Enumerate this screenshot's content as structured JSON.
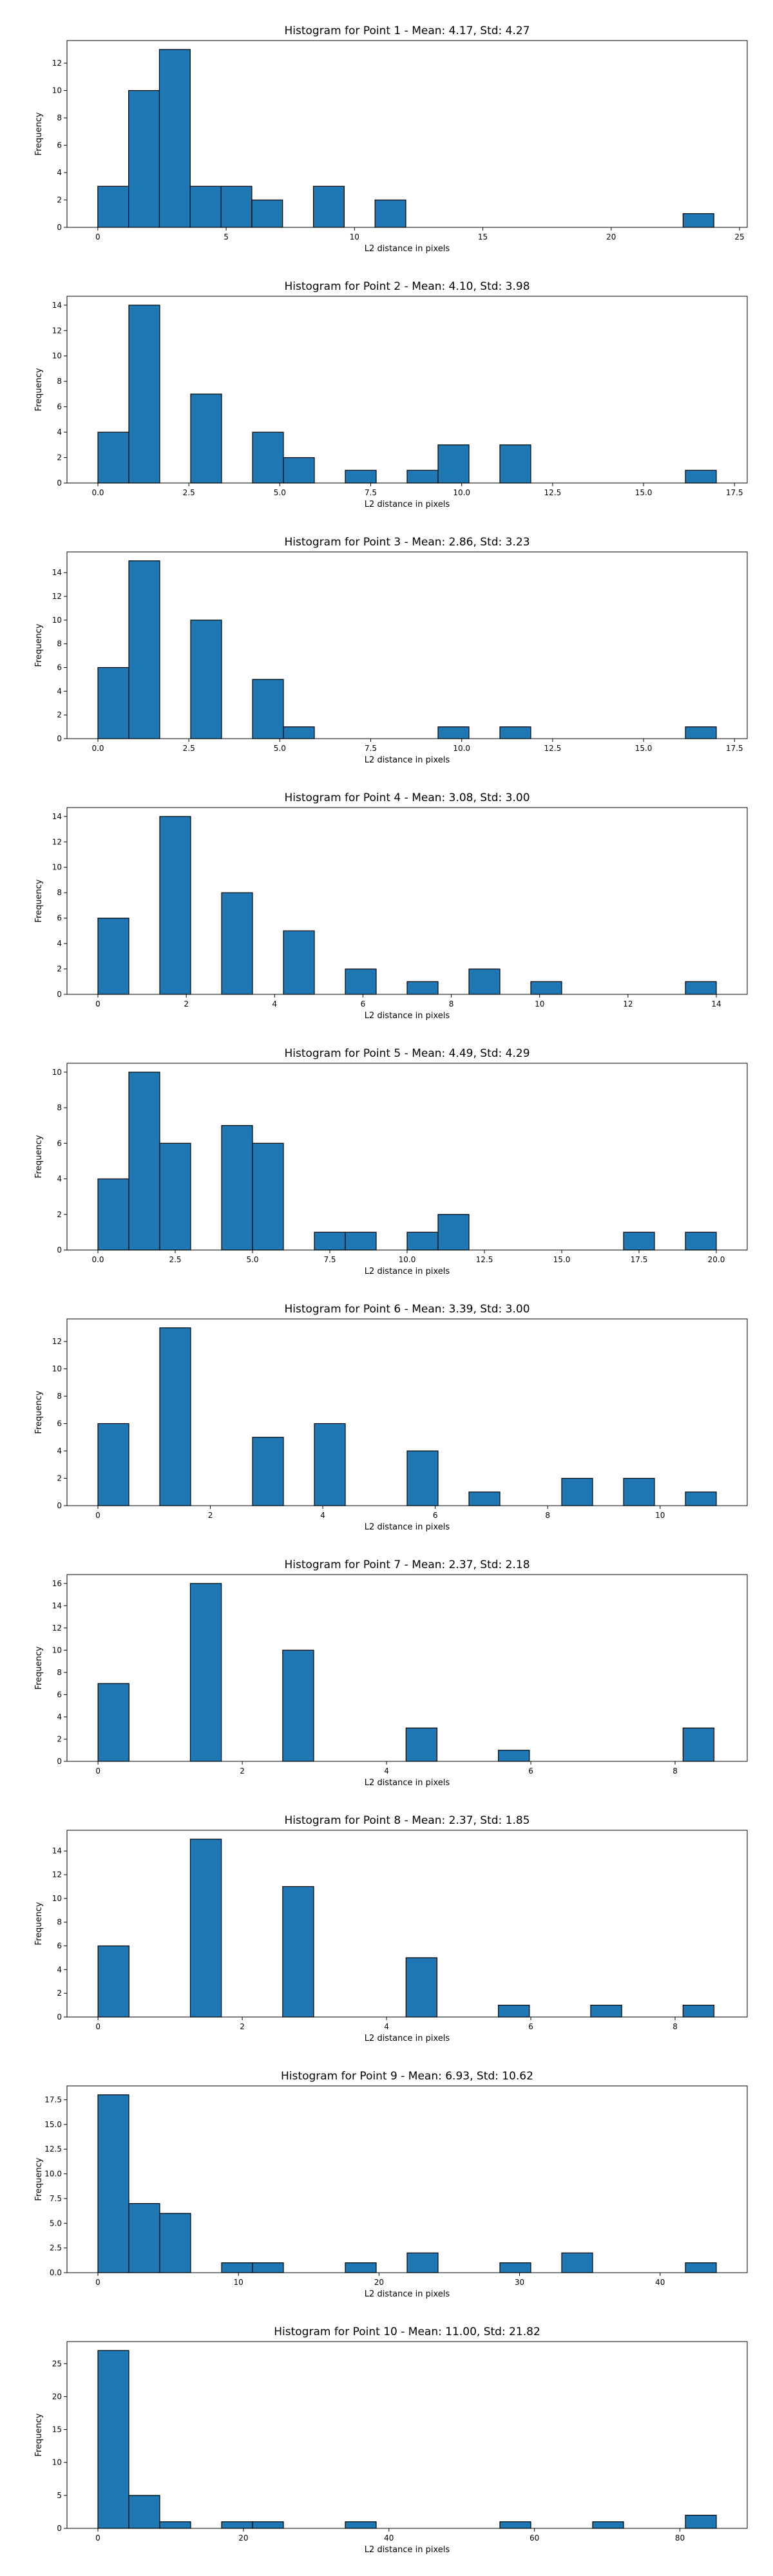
{
  "chart_data": [
    {
      "type": "bar",
      "title": "Histogram for Point 1 - Mean: 4.17, Std: 4.27",
      "xlabel": "L2 distance in pixels",
      "ylabel": "Frequency",
      "xlim": [
        -1.2,
        25.3
      ],
      "ylim": [
        0,
        13.65
      ],
      "xticks": [
        0,
        5,
        10,
        15,
        20,
        25
      ],
      "xtick_labels": [
        "0",
        "5",
        "10",
        "15",
        "20",
        "25"
      ],
      "yticks": [
        0,
        2,
        4,
        6,
        8,
        10,
        12
      ],
      "ytick_labels": [
        "0",
        "2",
        "4",
        "6",
        "8",
        "10",
        "12"
      ],
      "bins": [
        {
          "x0": 0.0,
          "x1": 1.2,
          "count": 3
        },
        {
          "x0": 1.2,
          "x1": 2.4,
          "count": 10
        },
        {
          "x0": 2.4,
          "x1": 3.6,
          "count": 13
        },
        {
          "x0": 3.6,
          "x1": 4.8,
          "count": 3
        },
        {
          "x0": 4.8,
          "x1": 6.0,
          "count": 3
        },
        {
          "x0": 6.0,
          "x1": 7.2,
          "count": 2
        },
        {
          "x0": 8.4,
          "x1": 9.6,
          "count": 3
        },
        {
          "x0": 10.8,
          "x1": 12.0,
          "count": 2
        },
        {
          "x0": 22.8,
          "x1": 24.0,
          "count": 1
        }
      ]
    },
    {
      "type": "bar",
      "title": "Histogram for Point 2 - Mean: 4.10, Std: 3.98",
      "xlabel": "L2 distance in pixels",
      "ylabel": "Frequency",
      "xlim": [
        -0.85,
        17.85
      ],
      "ylim": [
        0,
        14.7
      ],
      "xticks": [
        0,
        2.5,
        5,
        7.5,
        10,
        12.5,
        15,
        17.5
      ],
      "xtick_labels": [
        "0.0",
        "2.5",
        "5.0",
        "7.5",
        "10.0",
        "12.5",
        "15.0",
        "17.5"
      ],
      "yticks": [
        0,
        2,
        4,
        6,
        8,
        10,
        12,
        14
      ],
      "ytick_labels": [
        "0",
        "2",
        "4",
        "6",
        "8",
        "10",
        "12",
        "14"
      ],
      "bins": [
        {
          "x0": 0.0,
          "x1": 0.85,
          "count": 4
        },
        {
          "x0": 0.85,
          "x1": 1.7,
          "count": 14
        },
        {
          "x0": 2.55,
          "x1": 3.4,
          "count": 7
        },
        {
          "x0": 4.25,
          "x1": 5.1,
          "count": 4
        },
        {
          "x0": 5.1,
          "x1": 5.95,
          "count": 2
        },
        {
          "x0": 6.8,
          "x1": 7.65,
          "count": 1
        },
        {
          "x0": 8.5,
          "x1": 9.35,
          "count": 1
        },
        {
          "x0": 9.35,
          "x1": 10.2,
          "count": 3
        },
        {
          "x0": 11.05,
          "x1": 11.9,
          "count": 3
        },
        {
          "x0": 16.15,
          "x1": 17.0,
          "count": 1
        }
      ]
    },
    {
      "type": "bar",
      "title": "Histogram for Point 3 - Mean: 2.86, Std: 3.23",
      "xlabel": "L2 distance in pixels",
      "ylabel": "Frequency",
      "xlim": [
        -0.85,
        17.85
      ],
      "ylim": [
        0,
        15.75
      ],
      "xticks": [
        0,
        2.5,
        5,
        7.5,
        10,
        12.5,
        15,
        17.5
      ],
      "xtick_labels": [
        "0.0",
        "2.5",
        "5.0",
        "7.5",
        "10.0",
        "12.5",
        "15.0",
        "17.5"
      ],
      "yticks": [
        0,
        2,
        4,
        6,
        8,
        10,
        12,
        14
      ],
      "ytick_labels": [
        "0",
        "2",
        "4",
        "6",
        "8",
        "10",
        "12",
        "14"
      ],
      "bins": [
        {
          "x0": 0.0,
          "x1": 0.85,
          "count": 6
        },
        {
          "x0": 0.85,
          "x1": 1.7,
          "count": 15
        },
        {
          "x0": 2.55,
          "x1": 3.4,
          "count": 10
        },
        {
          "x0": 4.25,
          "x1": 5.1,
          "count": 5
        },
        {
          "x0": 5.1,
          "x1": 5.95,
          "count": 1
        },
        {
          "x0": 9.35,
          "x1": 10.2,
          "count": 1
        },
        {
          "x0": 11.05,
          "x1": 11.9,
          "count": 1
        },
        {
          "x0": 16.15,
          "x1": 17.0,
          "count": 1
        }
      ]
    },
    {
      "type": "bar",
      "title": "Histogram for Point 4 - Mean: 3.08, Std: 3.00",
      "xlabel": "L2 distance in pixels",
      "ylabel": "Frequency",
      "xlim": [
        -0.7,
        14.7
      ],
      "ylim": [
        0,
        14.7
      ],
      "xticks": [
        0,
        2,
        4,
        6,
        8,
        10,
        12,
        14
      ],
      "xtick_labels": [
        "0",
        "2",
        "4",
        "6",
        "8",
        "10",
        "12",
        "14"
      ],
      "yticks": [
        0,
        2,
        4,
        6,
        8,
        10,
        12,
        14
      ],
      "ytick_labels": [
        "0",
        "2",
        "4",
        "6",
        "8",
        "10",
        "12",
        "14"
      ],
      "bins": [
        {
          "x0": 0.0,
          "x1": 0.7,
          "count": 6
        },
        {
          "x0": 1.4,
          "x1": 2.1,
          "count": 14
        },
        {
          "x0": 2.8,
          "x1": 3.5,
          "count": 8
        },
        {
          "x0": 4.2,
          "x1": 4.9,
          "count": 5
        },
        {
          "x0": 5.6,
          "x1": 6.3,
          "count": 2
        },
        {
          "x0": 7.0,
          "x1": 7.7,
          "count": 1
        },
        {
          "x0": 8.4,
          "x1": 9.1,
          "count": 2
        },
        {
          "x0": 9.8,
          "x1": 10.5,
          "count": 1
        },
        {
          "x0": 13.3,
          "x1": 14.0,
          "count": 1
        }
      ]
    },
    {
      "type": "bar",
      "title": "Histogram for Point 5 - Mean: 4.49, Std: 4.29",
      "xlabel": "L2 distance in pixels",
      "ylabel": "Frequency",
      "xlim": [
        -1.0,
        21.0
      ],
      "ylim": [
        0,
        10.5
      ],
      "xticks": [
        0,
        2.5,
        5,
        7.5,
        10,
        12.5,
        15,
        17.5,
        20
      ],
      "xtick_labels": [
        "0.0",
        "2.5",
        "5.0",
        "7.5",
        "10.0",
        "12.5",
        "15.0",
        "17.5",
        "20.0"
      ],
      "yticks": [
        0,
        2,
        4,
        6,
        8,
        10
      ],
      "ytick_labels": [
        "0",
        "2",
        "4",
        "6",
        "8",
        "10"
      ],
      "bins": [
        {
          "x0": 0.0,
          "x1": 1.0,
          "count": 4
        },
        {
          "x0": 1.0,
          "x1": 2.0,
          "count": 10
        },
        {
          "x0": 2.0,
          "x1": 3.0,
          "count": 6
        },
        {
          "x0": 4.0,
          "x1": 5.0,
          "count": 7
        },
        {
          "x0": 5.0,
          "x1": 6.0,
          "count": 6
        },
        {
          "x0": 7.0,
          "x1": 8.0,
          "count": 1
        },
        {
          "x0": 8.0,
          "x1": 9.0,
          "count": 1
        },
        {
          "x0": 10.0,
          "x1": 11.0,
          "count": 1
        },
        {
          "x0": 11.0,
          "x1": 12.0,
          "count": 2
        },
        {
          "x0": 17.0,
          "x1": 18.0,
          "count": 1
        },
        {
          "x0": 19.0,
          "x1": 20.0,
          "count": 1
        }
      ]
    },
    {
      "type": "bar",
      "title": "Histogram for Point 6 - Mean: 3.39, Std: 3.00",
      "xlabel": "L2 distance in pixels",
      "ylabel": "Frequency",
      "xlim": [
        -0.55,
        11.55
      ],
      "ylim": [
        0,
        13.65
      ],
      "xticks": [
        0,
        2,
        4,
        6,
        8,
        10
      ],
      "xtick_labels": [
        "0",
        "2",
        "4",
        "6",
        "8",
        "10"
      ],
      "yticks": [
        0,
        2,
        4,
        6,
        8,
        10,
        12
      ],
      "ytick_labels": [
        "0",
        "2",
        "4",
        "6",
        "8",
        "10",
        "12"
      ],
      "bins": [
        {
          "x0": 0.0,
          "x1": 0.55,
          "count": 6
        },
        {
          "x0": 1.1,
          "x1": 1.65,
          "count": 13
        },
        {
          "x0": 2.75,
          "x1": 3.3,
          "count": 5
        },
        {
          "x0": 3.85,
          "x1": 4.4,
          "count": 6
        },
        {
          "x0": 5.5,
          "x1": 6.05,
          "count": 4
        },
        {
          "x0": 6.6,
          "x1": 7.15,
          "count": 1
        },
        {
          "x0": 8.25,
          "x1": 8.8,
          "count": 2
        },
        {
          "x0": 9.35,
          "x1": 9.9,
          "count": 2
        },
        {
          "x0": 10.45,
          "x1": 11.0,
          "count": 1
        }
      ]
    },
    {
      "type": "bar",
      "title": "Histogram for Point 7 - Mean: 2.37, Std: 2.18",
      "xlabel": "L2 distance in pixels",
      "ylabel": "Frequency",
      "xlim": [
        -0.43,
        9.0
      ],
      "ylim": [
        0,
        16.8
      ],
      "xticks": [
        0,
        2,
        4,
        6,
        8
      ],
      "xtick_labels": [
        "0",
        "2",
        "4",
        "6",
        "8"
      ],
      "yticks": [
        0,
        2,
        4,
        6,
        8,
        10,
        12,
        14,
        16
      ],
      "ytick_labels": [
        "0",
        "2",
        "4",
        "6",
        "8",
        "10",
        "12",
        "14",
        "16"
      ],
      "bins": [
        {
          "x0": 0.0,
          "x1": 0.43,
          "count": 7
        },
        {
          "x0": 1.28,
          "x1": 1.71,
          "count": 16
        },
        {
          "x0": 2.56,
          "x1": 2.99,
          "count": 10
        },
        {
          "x0": 4.27,
          "x1": 4.7,
          "count": 3
        },
        {
          "x0": 5.55,
          "x1": 5.98,
          "count": 1
        },
        {
          "x0": 8.11,
          "x1": 8.54,
          "count": 3
        }
      ]
    },
    {
      "type": "bar",
      "title": "Histogram for Point 8 - Mean: 2.37, Std: 1.85",
      "xlabel": "L2 distance in pixels",
      "ylabel": "Frequency",
      "xlim": [
        -0.43,
        9.0
      ],
      "ylim": [
        0,
        15.75
      ],
      "xticks": [
        0,
        2,
        4,
        6,
        8
      ],
      "xtick_labels": [
        "0",
        "2",
        "4",
        "6",
        "8"
      ],
      "yticks": [
        0,
        2,
        4,
        6,
        8,
        10,
        12,
        14
      ],
      "ytick_labels": [
        "0",
        "2",
        "4",
        "6",
        "8",
        "10",
        "12",
        "14"
      ],
      "bins": [
        {
          "x0": 0.0,
          "x1": 0.43,
          "count": 6
        },
        {
          "x0": 1.28,
          "x1": 1.71,
          "count": 15
        },
        {
          "x0": 2.56,
          "x1": 2.99,
          "count": 11
        },
        {
          "x0": 4.27,
          "x1": 4.7,
          "count": 5
        },
        {
          "x0": 5.55,
          "x1": 5.98,
          "count": 1
        },
        {
          "x0": 6.83,
          "x1": 7.26,
          "count": 1
        },
        {
          "x0": 8.11,
          "x1": 8.54,
          "count": 1
        }
      ]
    },
    {
      "type": "bar",
      "title": "Histogram for Point 9 - Mean: 6.93, Std: 10.62",
      "xlabel": "L2 distance in pixels",
      "ylabel": "Frequency",
      "xlim": [
        -2.2,
        46.2
      ],
      "ylim": [
        0,
        18.9
      ],
      "xticks": [
        0,
        10,
        20,
        30,
        40
      ],
      "xtick_labels": [
        "0",
        "10",
        "20",
        "30",
        "40"
      ],
      "yticks": [
        0,
        2.5,
        5,
        7.5,
        10,
        12.5,
        15,
        17.5
      ],
      "ytick_labels": [
        "0.0",
        "2.5",
        "5.0",
        "7.5",
        "10.0",
        "12.5",
        "15.0",
        "17.5"
      ],
      "bins": [
        {
          "x0": 0.0,
          "x1": 2.2,
          "count": 18
        },
        {
          "x0": 2.2,
          "x1": 4.4,
          "count": 7
        },
        {
          "x0": 4.4,
          "x1": 6.6,
          "count": 6
        },
        {
          "x0": 8.8,
          "x1": 11.0,
          "count": 1
        },
        {
          "x0": 11.0,
          "x1": 13.2,
          "count": 1
        },
        {
          "x0": 17.6,
          "x1": 19.8,
          "count": 1
        },
        {
          "x0": 22.0,
          "x1": 24.2,
          "count": 2
        },
        {
          "x0": 28.6,
          "x1": 30.8,
          "count": 1
        },
        {
          "x0": 33.0,
          "x1": 35.2,
          "count": 2
        },
        {
          "x0": 41.8,
          "x1": 44.0,
          "count": 1
        }
      ]
    },
    {
      "type": "bar",
      "title": "Histogram for Point 10 - Mean: 11.00, Std: 21.82",
      "xlabel": "L2 distance in pixels",
      "ylabel": "Frequency",
      "xlim": [
        -4.25,
        89.25
      ],
      "ylim": [
        0,
        28.35
      ],
      "xticks": [
        0,
        20,
        40,
        60,
        80
      ],
      "xtick_labels": [
        "0",
        "20",
        "40",
        "60",
        "80"
      ],
      "yticks": [
        0,
        5,
        10,
        15,
        20,
        25
      ],
      "ytick_labels": [
        "0",
        "5",
        "10",
        "15",
        "20",
        "25"
      ],
      "bins": [
        {
          "x0": 0.0,
          "x1": 4.25,
          "count": 27
        },
        {
          "x0": 4.25,
          "x1": 8.5,
          "count": 5
        },
        {
          "x0": 8.5,
          "x1": 12.75,
          "count": 1
        },
        {
          "x0": 17.0,
          "x1": 21.25,
          "count": 1
        },
        {
          "x0": 21.25,
          "x1": 25.5,
          "count": 1
        },
        {
          "x0": 34.0,
          "x1": 38.25,
          "count": 1
        },
        {
          "x0": 55.25,
          "x1": 59.5,
          "count": 1
        },
        {
          "x0": 68.0,
          "x1": 72.25,
          "count": 1
        },
        {
          "x0": 80.75,
          "x1": 85.0,
          "count": 2
        }
      ]
    }
  ],
  "colors": {
    "bar_fill": "#1f77b4",
    "bar_edge": "#000000"
  }
}
